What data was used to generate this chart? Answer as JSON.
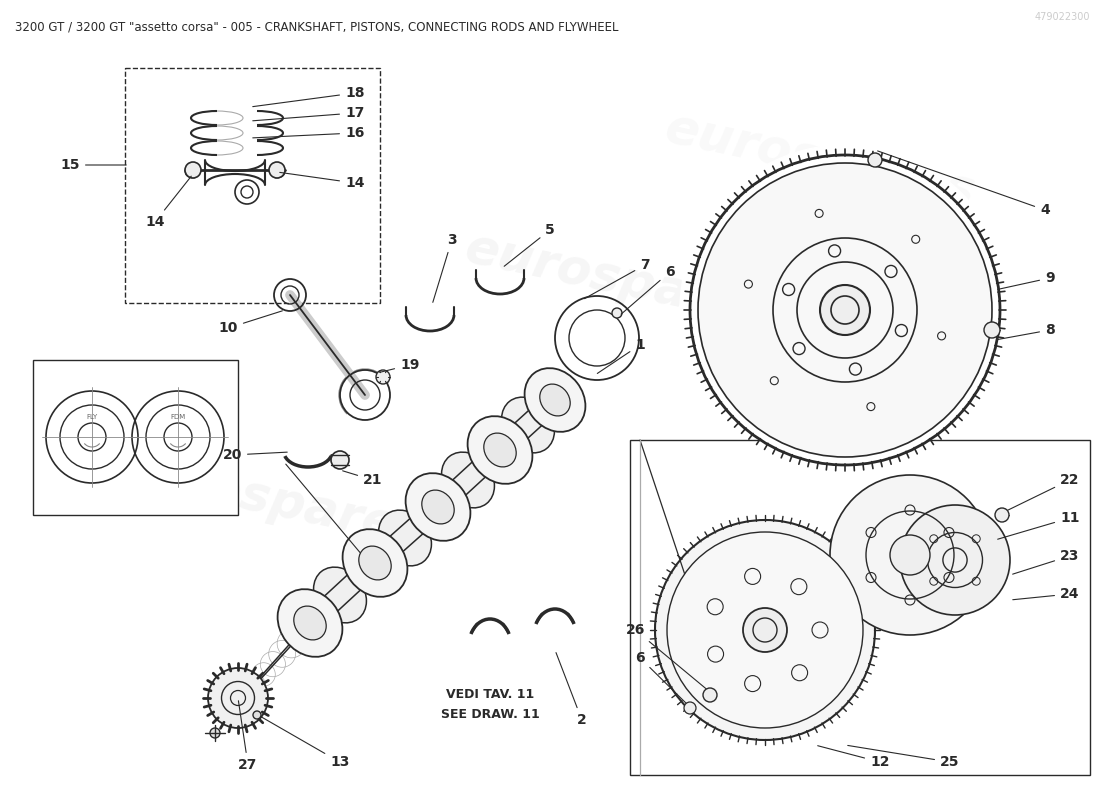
{
  "title": "3200 GT / 3200 GT \"assetto corsa\" - 005 - CRANKSHAFT, PISTONS, CONNECTING RODS AND FLYWHEEL",
  "background_color": "#ffffff",
  "title_fontsize": 8.5,
  "part_number": "479022300",
  "watermark_text": "eurospares",
  "label_fontsize": 10,
  "line_color": "#2a2a2a",
  "lw_main": 1.2,
  "lw_thin": 0.8
}
